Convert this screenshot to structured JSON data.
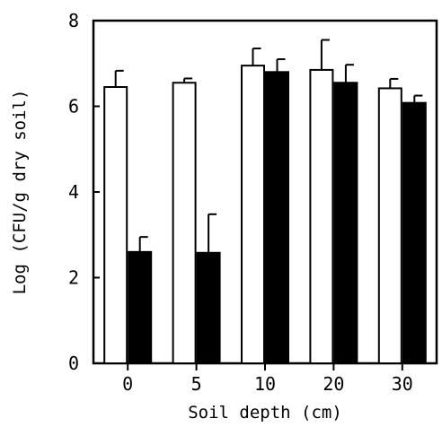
{
  "chart_data": {
    "type": "bar",
    "title": "",
    "xlabel": "Soil depth (cm)",
    "ylabel": "Log (CFU/g dry soil)",
    "categories": [
      "0",
      "5",
      "10",
      "20",
      "30"
    ],
    "ylim": [
      0,
      8
    ],
    "yticks": [
      "0",
      "2",
      "4",
      "6",
      "8"
    ],
    "grid": false,
    "legend": "none",
    "series": [
      {
        "fill": "#ffffff",
        "values": [
          6.45,
          6.55,
          6.95,
          6.85,
          6.42
        ],
        "errors": [
          0.38,
          0.1,
          0.4,
          0.7,
          0.22
        ]
      },
      {
        "fill": "#000000",
        "values": [
          2.6,
          2.58,
          6.8,
          6.55,
          6.08
        ],
        "errors": [
          0.35,
          0.9,
          0.3,
          0.42,
          0.17
        ]
      }
    ]
  }
}
